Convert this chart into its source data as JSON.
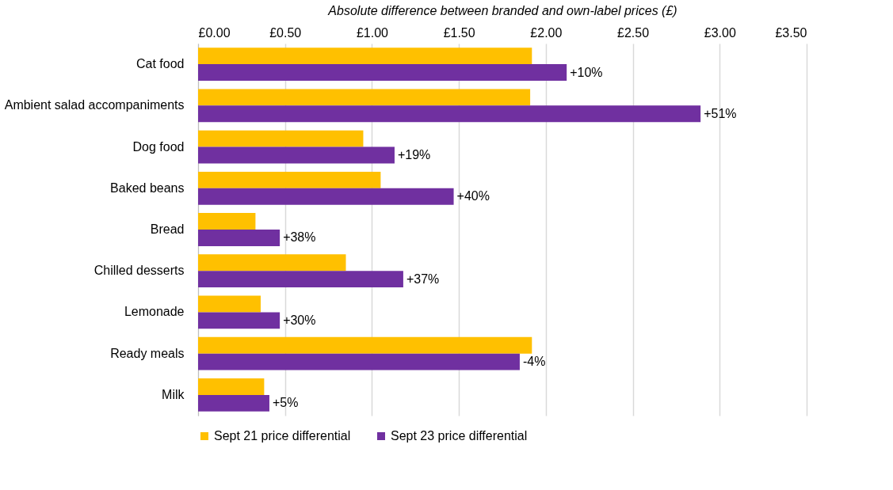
{
  "chart_data": {
    "type": "bar",
    "orientation": "horizontal",
    "xlabel": "Absolute difference between branded and own-label prices (£)",
    "categories": [
      "Cat food",
      "Ambient salad accompaniments",
      "Dog food",
      "Baked beans",
      "Bread",
      "Chilled desserts",
      "Lemonade ",
      "Ready meals",
      "Milk"
    ],
    "series": [
      {
        "name": "Sept 21 price differential",
        "color": "#ffc000",
        "values": [
          1.92,
          1.91,
          0.95,
          1.05,
          0.33,
          0.85,
          0.36,
          1.92,
          0.38
        ]
      },
      {
        "name": "Sept 23 price differential",
        "color": "#7030a0",
        "values": [
          2.12,
          2.89,
          1.13,
          1.47,
          0.47,
          1.18,
          0.47,
          1.85,
          0.41
        ]
      }
    ],
    "annotations": [
      {
        "text": "+10%",
        "x": 2.12,
        "y": "Cat food"
      },
      {
        "text": "+51%",
        "x": 2.89,
        "y": "Ambient salad accompaniments"
      },
      {
        "text": "+19%",
        "x": 1.13,
        "y": "Dog food"
      },
      {
        "text": "+40%",
        "x": 1.47,
        "y": "Baked beans"
      },
      {
        "text": "+38%",
        "x": 0.47,
        "y": "Bread"
      },
      {
        "text": "+37%",
        "x": 1.18,
        "y": "Chilled desserts"
      },
      {
        "text": "+30%",
        "x": 0.47,
        "y": "Lemonade "
      },
      {
        "text": "-4%",
        "x": 1.85,
        "y": "Ready meals"
      },
      {
        "text": "+5%",
        "x": 0.41,
        "y": "Milk"
      }
    ],
    "xlim": [
      0,
      3.5
    ],
    "xticks": [
      {
        "value": 0,
        "label": "£0.00"
      },
      {
        "value": 0.5,
        "label": "£0.50"
      },
      {
        "value": 1,
        "label": "£1.00"
      },
      {
        "value": 1.5,
        "label": "£1.50"
      },
      {
        "value": 2,
        "label": "£2.00"
      },
      {
        "value": 2.5,
        "label": "£2.50"
      },
      {
        "value": 3,
        "label": "£3.00"
      },
      {
        "value": 3.5,
        "label": "£3.50"
      }
    ],
    "grid": "x",
    "legend": "bottom"
  }
}
